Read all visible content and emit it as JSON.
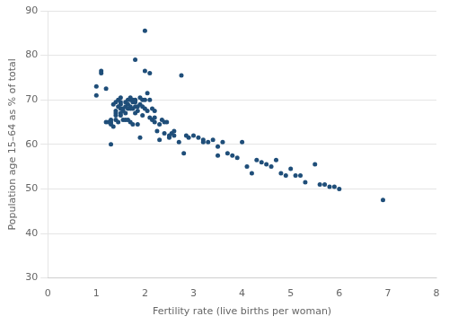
{
  "chart_data": {
    "type": "scatter",
    "x": [
      1.0,
      1.0,
      1.1,
      1.1,
      1.2,
      1.2,
      1.25,
      1.3,
      1.3,
      1.3,
      1.3,
      1.35,
      1.35,
      1.4,
      1.4,
      1.4,
      1.4,
      1.4,
      1.45,
      1.45,
      1.45,
      1.5,
      1.5,
      1.5,
      1.5,
      1.5,
      1.5,
      1.55,
      1.55,
      1.55,
      1.6,
      1.6,
      1.6,
      1.6,
      1.65,
      1.65,
      1.65,
      1.65,
      1.7,
      1.7,
      1.7,
      1.7,
      1.7,
      1.75,
      1.75,
      1.75,
      1.75,
      1.8,
      1.8,
      1.8,
      1.8,
      1.8,
      1.85,
      1.85,
      1.85,
      1.9,
      1.9,
      1.9,
      1.95,
      1.95,
      1.95,
      2.0,
      2.0,
      2.0,
      2.0,
      2.05,
      2.05,
      2.1,
      2.1,
      2.1,
      2.15,
      2.15,
      2.2,
      2.2,
      2.2,
      2.25,
      2.3,
      2.3,
      2.35,
      2.4,
      2.4,
      2.45,
      2.5,
      2.5,
      2.55,
      2.6,
      2.6,
      2.7,
      2.75,
      2.8,
      2.85,
      2.9,
      3.0,
      3.1,
      3.2,
      3.2,
      3.3,
      3.4,
      3.5,
      3.5,
      3.6,
      3.7,
      3.8,
      3.9,
      4.0,
      4.1,
      4.2,
      4.3,
      4.4,
      4.5,
      4.6,
      4.7,
      4.8,
      4.9,
      5.0,
      5.1,
      5.2,
      5.3,
      5.5,
      5.6,
      5.7,
      5.8,
      5.9,
      6.0,
      6.9
    ],
    "values": [
      73.0,
      71.0,
      76.5,
      76.0,
      72.5,
      65.0,
      65.0,
      65.5,
      65.0,
      64.5,
      60.0,
      69.0,
      64.0,
      69.5,
      67.5,
      67.0,
      66.5,
      65.5,
      70.0,
      68.5,
      65.0,
      70.5,
      69.5,
      69.0,
      68.0,
      67.0,
      66.5,
      68.0,
      67.5,
      65.5,
      69.5,
      68.5,
      67.0,
      65.5,
      70.0,
      69.0,
      68.0,
      65.5,
      70.5,
      70.0,
      68.5,
      68.0,
      65.0,
      70.0,
      69.5,
      68.0,
      64.5,
      79.0,
      70.0,
      69.5,
      68.5,
      67.0,
      68.5,
      67.5,
      64.5,
      70.5,
      69.0,
      61.5,
      70.0,
      68.5,
      66.5,
      85.5,
      76.5,
      70.0,
      68.0,
      71.5,
      67.5,
      76.0,
      70.0,
      66.0,
      68.0,
      65.5,
      67.5,
      66.0,
      65.0,
      63.0,
      64.5,
      61.0,
      65.5,
      65.0,
      62.5,
      65.0,
      61.5,
      62.0,
      62.5,
      63.0,
      62.0,
      60.5,
      75.5,
      58.0,
      62.0,
      61.5,
      62.0,
      61.5,
      60.5,
      61.0,
      60.5,
      61.0,
      59.5,
      57.5,
      60.5,
      58.0,
      57.5,
      57.0,
      60.5,
      55.0,
      53.5,
      56.5,
      56.0,
      55.5,
      55.0,
      56.5,
      53.5,
      53.0,
      54.5,
      53.0,
      53.0,
      51.5,
      55.5,
      51.0,
      51.0,
      50.5,
      50.5,
      50.0,
      47.5
    ],
    "color": "#1F4E79",
    "xlabel": "Fertility rate (live births per woman)",
    "ylabel": "Population age 15–64 as % of total",
    "xlim": [
      0,
      8
    ],
    "ylim": [
      30,
      90
    ],
    "xticks": [
      0,
      1,
      2,
      3,
      4,
      5,
      6,
      7,
      8
    ],
    "yticks": [
      30,
      40,
      50,
      60,
      70,
      80,
      90
    ],
    "grid": "y"
  }
}
